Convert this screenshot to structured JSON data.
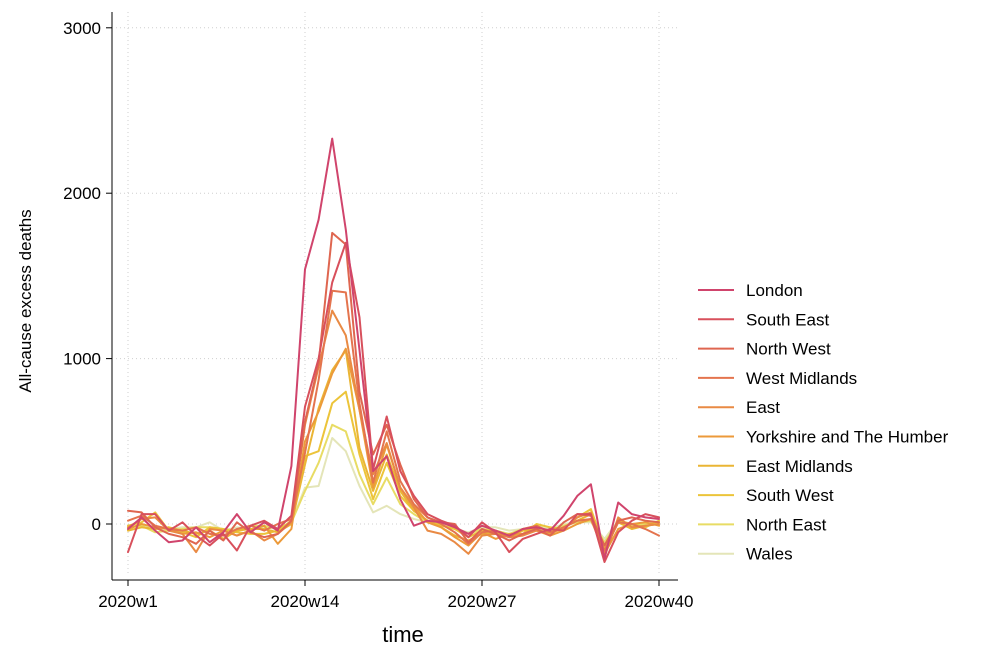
{
  "chart_data": {
    "type": "line",
    "xlabel": "time",
    "ylabel": "All-cause excess deaths",
    "x_ticks": [
      {
        "week": 1,
        "label": "2020w1"
      },
      {
        "week": 14,
        "label": "2020w14"
      },
      {
        "week": 27,
        "label": "2020w27"
      },
      {
        "week": 40,
        "label": "2020w40"
      }
    ],
    "y_ticks": [
      {
        "value": 0,
        "label": "0"
      },
      {
        "value": 1000,
        "label": "1000"
      },
      {
        "value": 2000,
        "label": "2000"
      },
      {
        "value": 3000,
        "label": "3000"
      }
    ],
    "xlim": [
      1,
      40
    ],
    "ylim": [
      -300,
      3000
    ],
    "grid": true,
    "legend_position": "right",
    "x": [
      1,
      2,
      3,
      4,
      5,
      6,
      7,
      8,
      9,
      10,
      11,
      12,
      13,
      14,
      15,
      16,
      17,
      18,
      19,
      20,
      21,
      22,
      23,
      24,
      25,
      26,
      27,
      28,
      29,
      30,
      31,
      32,
      33,
      34,
      35,
      36,
      37,
      38,
      39,
      40
    ],
    "series": [
      {
        "name": "London",
        "color": "#d0446c",
        "values": [
          -30,
          40,
          -40,
          -110,
          -100,
          -20,
          -110,
          -50,
          60,
          -50,
          10,
          -40,
          350,
          1540,
          1840,
          2330,
          1780,
          1050,
          320,
          410,
          150,
          -10,
          20,
          10,
          -20,
          -60,
          -10,
          -40,
          -70,
          -30,
          -20,
          -40,
          50,
          170,
          240,
          -210,
          130,
          60,
          40,
          30
        ]
      },
      {
        "name": "South East",
        "color": "#d8505c",
        "values": [
          -170,
          60,
          60,
          -40,
          10,
          -70,
          -130,
          -60,
          -160,
          -10,
          20,
          -30,
          50,
          710,
          1000,
          1460,
          1700,
          1250,
          330,
          650,
          320,
          170,
          60,
          20,
          -10,
          -80,
          10,
          -50,
          -170,
          -90,
          -60,
          -30,
          -40,
          60,
          60,
          -230,
          -50,
          20,
          60,
          40
        ]
      },
      {
        "name": "North West",
        "color": "#df6650",
        "values": [
          80,
          70,
          -20,
          -60,
          -80,
          -120,
          -40,
          -100,
          10,
          -50,
          -80,
          -60,
          20,
          620,
          970,
          1760,
          1690,
          800,
          420,
          600,
          360,
          150,
          40,
          10,
          0,
          -110,
          -30,
          -60,
          -100,
          -60,
          -30,
          -70,
          10,
          60,
          50,
          -130,
          20,
          40,
          20,
          10
        ]
      },
      {
        "name": "West Midlands",
        "color": "#e4744e",
        "values": [
          20,
          50,
          -10,
          -30,
          -40,
          -20,
          -60,
          -70,
          -30,
          -10,
          -40,
          0,
          30,
          430,
          870,
          1410,
          1400,
          730,
          250,
          560,
          260,
          120,
          40,
          0,
          -50,
          -120,
          -50,
          -40,
          -80,
          -30,
          -10,
          -50,
          -20,
          20,
          30,
          -160,
          10,
          0,
          -30,
          -70
        ]
      },
      {
        "name": "East",
        "color": "#e98a44",
        "values": [
          -20,
          30,
          40,
          -40,
          -60,
          -170,
          -30,
          -40,
          -70,
          -40,
          -100,
          -60,
          10,
          600,
          950,
          1290,
          1140,
          690,
          300,
          490,
          220,
          100,
          -40,
          -60,
          -110,
          -180,
          -70,
          -60,
          -80,
          -70,
          -40,
          -50,
          -30,
          40,
          70,
          -200,
          40,
          -20,
          -10,
          0
        ]
      },
      {
        "name": "Yorkshire and The Humber",
        "color": "#ec9a3a",
        "values": [
          -30,
          0,
          -20,
          -30,
          -60,
          -50,
          -80,
          -40,
          -70,
          -40,
          -10,
          -120,
          -30,
          500,
          680,
          910,
          1060,
          690,
          220,
          480,
          220,
          110,
          10,
          -20,
          -80,
          -130,
          -50,
          -90,
          -60,
          -60,
          -40,
          -70,
          -40,
          0,
          30,
          -180,
          -30,
          0,
          10,
          -10
        ]
      },
      {
        "name": "East Midlands",
        "color": "#eab534",
        "values": [
          -40,
          -20,
          -30,
          -20,
          -40,
          -60,
          -40,
          -90,
          -40,
          -30,
          -30,
          -50,
          0,
          360,
          700,
          930,
          1050,
          460,
          200,
          420,
          200,
          80,
          20,
          -20,
          -70,
          -100,
          -60,
          -50,
          -80,
          -40,
          -30,
          -60,
          -20,
          20,
          60,
          -160,
          10,
          -30,
          -10,
          0
        ]
      },
      {
        "name": "South West",
        "color": "#ecc43a",
        "values": [
          -10,
          10,
          70,
          -40,
          -50,
          -80,
          -20,
          -30,
          -50,
          -60,
          -60,
          -40,
          20,
          410,
          440,
          730,
          800,
          420,
          150,
          370,
          170,
          80,
          20,
          -10,
          -30,
          -80,
          -40,
          -40,
          -70,
          -60,
          0,
          -20,
          -30,
          40,
          90,
          -140,
          20,
          0,
          -20,
          20
        ]
      },
      {
        "name": "North East",
        "color": "#e8dc64",
        "values": [
          -20,
          -10,
          -50,
          -40,
          -30,
          -20,
          -20,
          -30,
          -40,
          -10,
          -10,
          -30,
          10,
          200,
          370,
          600,
          560,
          300,
          120,
          280,
          120,
          60,
          10,
          -10,
          -20,
          -60,
          -30,
          -40,
          -60,
          -30,
          -20,
          -40,
          -10,
          10,
          20,
          -110,
          10,
          -10,
          0,
          10
        ]
      },
      {
        "name": "Wales",
        "color": "#e4e5b8",
        "values": [
          -10,
          -10,
          -30,
          -30,
          -20,
          -20,
          10,
          -40,
          -20,
          -30,
          -20,
          -30,
          10,
          220,
          230,
          520,
          440,
          230,
          70,
          110,
          60,
          30,
          10,
          0,
          -30,
          -50,
          -20,
          -20,
          -40,
          -30,
          -10,
          -30,
          0,
          10,
          10,
          -90,
          20,
          0,
          -10,
          10
        ]
      }
    ]
  }
}
